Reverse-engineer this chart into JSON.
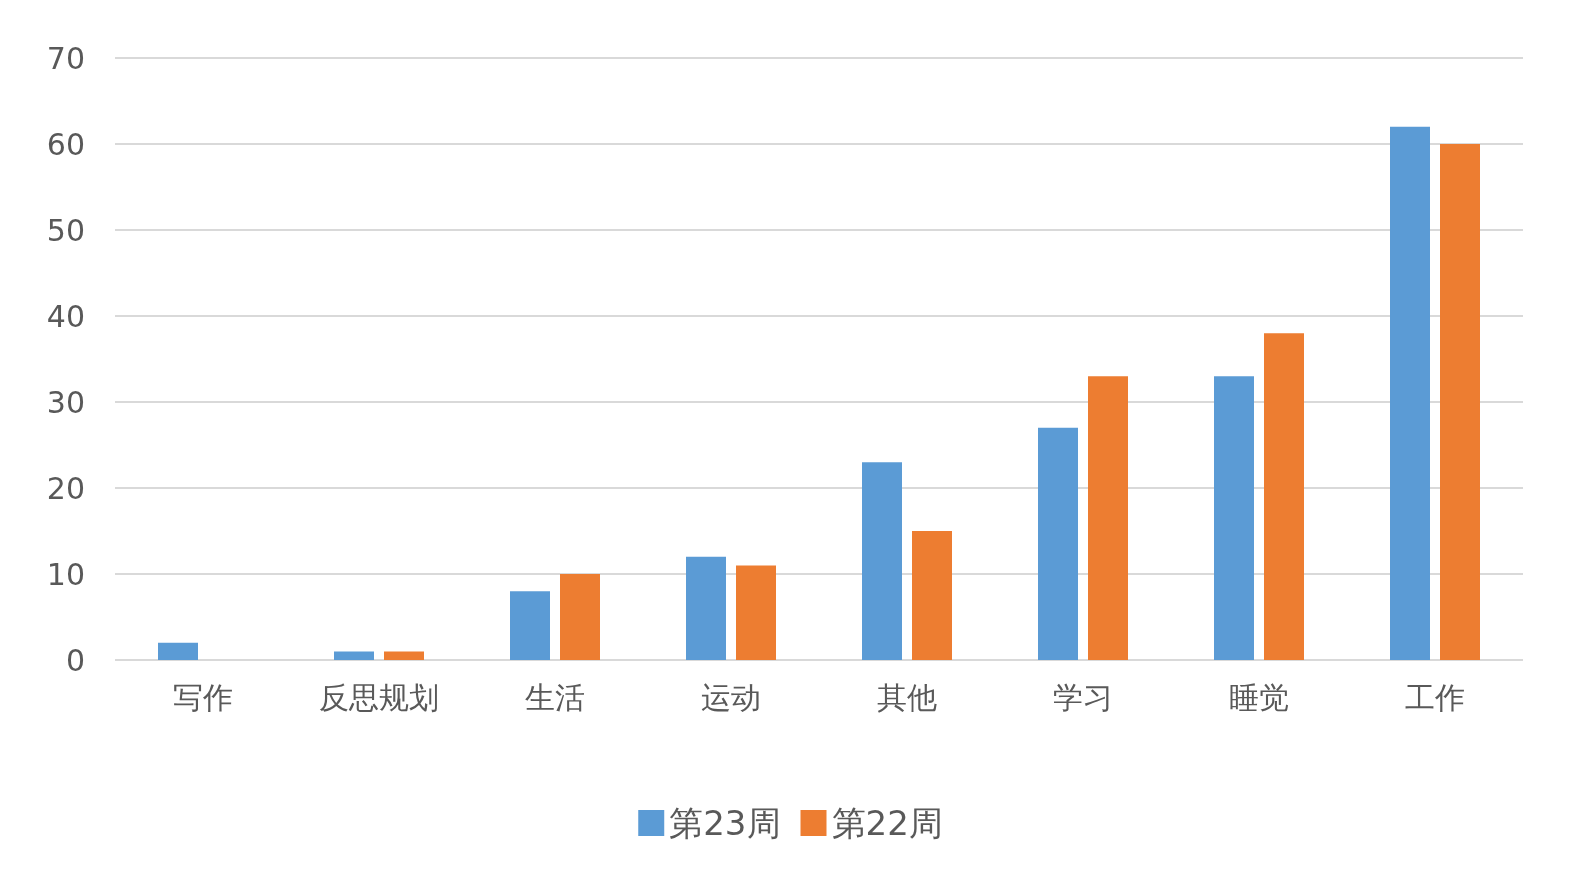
{
  "chart_data": {
    "type": "bar",
    "categories": [
      "写作",
      "反思规划",
      "生活",
      "运动",
      "其他",
      "学习",
      "睡觉",
      "工作"
    ],
    "series": [
      {
        "name": "第23周",
        "color": "#5b9bd5",
        "values": [
          2,
          1,
          8,
          12,
          23,
          27,
          33,
          62
        ]
      },
      {
        "name": "第22周",
        "color": "#ed7d31",
        "values": [
          0,
          1,
          10,
          11,
          15,
          33,
          38,
          60
        ]
      }
    ],
    "ylim": [
      0,
      70
    ],
    "yticks": [
      0,
      10,
      20,
      30,
      40,
      50,
      60,
      70
    ],
    "grid": "y",
    "legend": "bottom"
  }
}
